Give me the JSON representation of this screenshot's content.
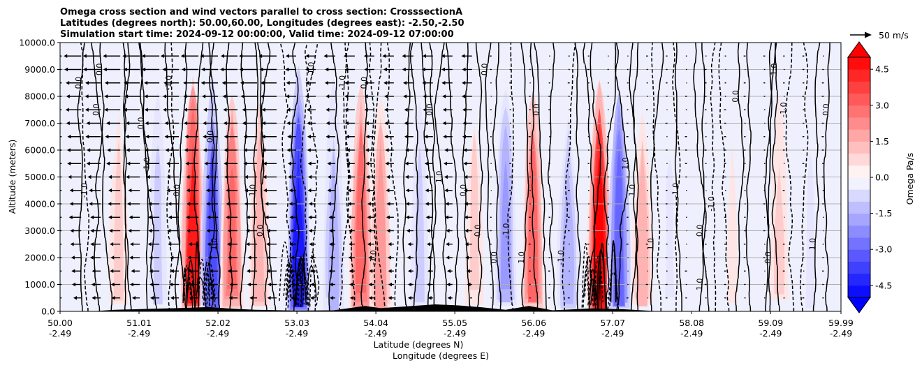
{
  "chart_data": {
    "type": "heatmap",
    "title_lines": [
      "Omega cross section and wind vectors parallel to cross section: CrosssectionA",
      "Latitudes (degrees north): 50.00,60.00, Longitudes (degrees east): -2.50,-2.50",
      "Simulation start time: 2024-09-12 00:00:00, Valid time: 2024-09-12 07:00:00"
    ],
    "ylabel": "Altitude (meters)",
    "xlabel_1": "Latitude (degrees N)",
    "xlabel_2": "Longitude (degrees E)",
    "ylim": [
      0,
      10000
    ],
    "y_ticks": [
      "0.0",
      "1000.0",
      "2000.0",
      "3000.0",
      "4000.0",
      "5000.0",
      "6000.0",
      "7000.0",
      "8000.0",
      "9000.0",
      "10000.0"
    ],
    "x_ticks": [
      {
        "lat": "50.00",
        "lon": "-2.49"
      },
      {
        "lat": "51.01",
        "lon": "-2.49"
      },
      {
        "lat": "52.02",
        "lon": "-2.49"
      },
      {
        "lat": "53.03",
        "lon": "-2.49"
      },
      {
        "lat": "54.04",
        "lon": "-2.49"
      },
      {
        "lat": "55.05",
        "lon": "-2.49"
      },
      {
        "lat": "56.06",
        "lon": "-2.49"
      },
      {
        "lat": "57.07",
        "lon": "-2.49"
      },
      {
        "lat": "58.08",
        "lon": "-2.49"
      },
      {
        "lat": "59.09",
        "lon": "-2.49"
      },
      {
        "lat": "59.99",
        "lon": "-2.49"
      }
    ],
    "grid": true,
    "colorbar": {
      "label": "Omega Pa/s",
      "ticks": [
        "-4.5",
        "-3.0",
        "-1.5",
        "0.0",
        "1.5",
        "3.0",
        "4.5"
      ],
      "range": [
        -5,
        5
      ],
      "extend": "both",
      "colors": {
        "negative": "#0000ff",
        "zero": "#ffffff",
        "positive": "#ff0000"
      }
    },
    "quiver_key": "50 m/s",
    "bands": [
      {
        "lat": 50.75,
        "omega": 1.0
      },
      {
        "lat": 51.25,
        "omega": -1.2
      },
      {
        "lat": 51.7,
        "omega": 4.5
      },
      {
        "lat": 51.95,
        "omega": -3.5
      },
      {
        "lat": 52.2,
        "omega": 3.0
      },
      {
        "lat": 52.55,
        "omega": 1.5
      },
      {
        "lat": 53.05,
        "omega": -4.5
      },
      {
        "lat": 53.5,
        "omega": -1.5
      },
      {
        "lat": 53.85,
        "omega": 3.0
      },
      {
        "lat": 54.1,
        "omega": 2.0
      },
      {
        "lat": 54.6,
        "omega": -1.0
      },
      {
        "lat": 55.3,
        "omega": 1.0
      },
      {
        "lat": 55.7,
        "omega": -2.0
      },
      {
        "lat": 56.05,
        "omega": 3.0
      },
      {
        "lat": 56.5,
        "omega": -1.5
      },
      {
        "lat": 56.9,
        "omega": 5.0
      },
      {
        "lat": 57.15,
        "omega": -3.0
      },
      {
        "lat": 57.45,
        "omega": 1.5
      },
      {
        "lat": 57.8,
        "omega": -0.6
      },
      {
        "lat": 58.6,
        "omega": 0.5
      },
      {
        "lat": 59.2,
        "omega": 0.8
      },
      {
        "lat": 59.6,
        "omega": -0.5
      }
    ],
    "contour_labels": [
      "0.0",
      "1.0",
      "-1.0",
      "2.0",
      "-2.0"
    ]
  }
}
